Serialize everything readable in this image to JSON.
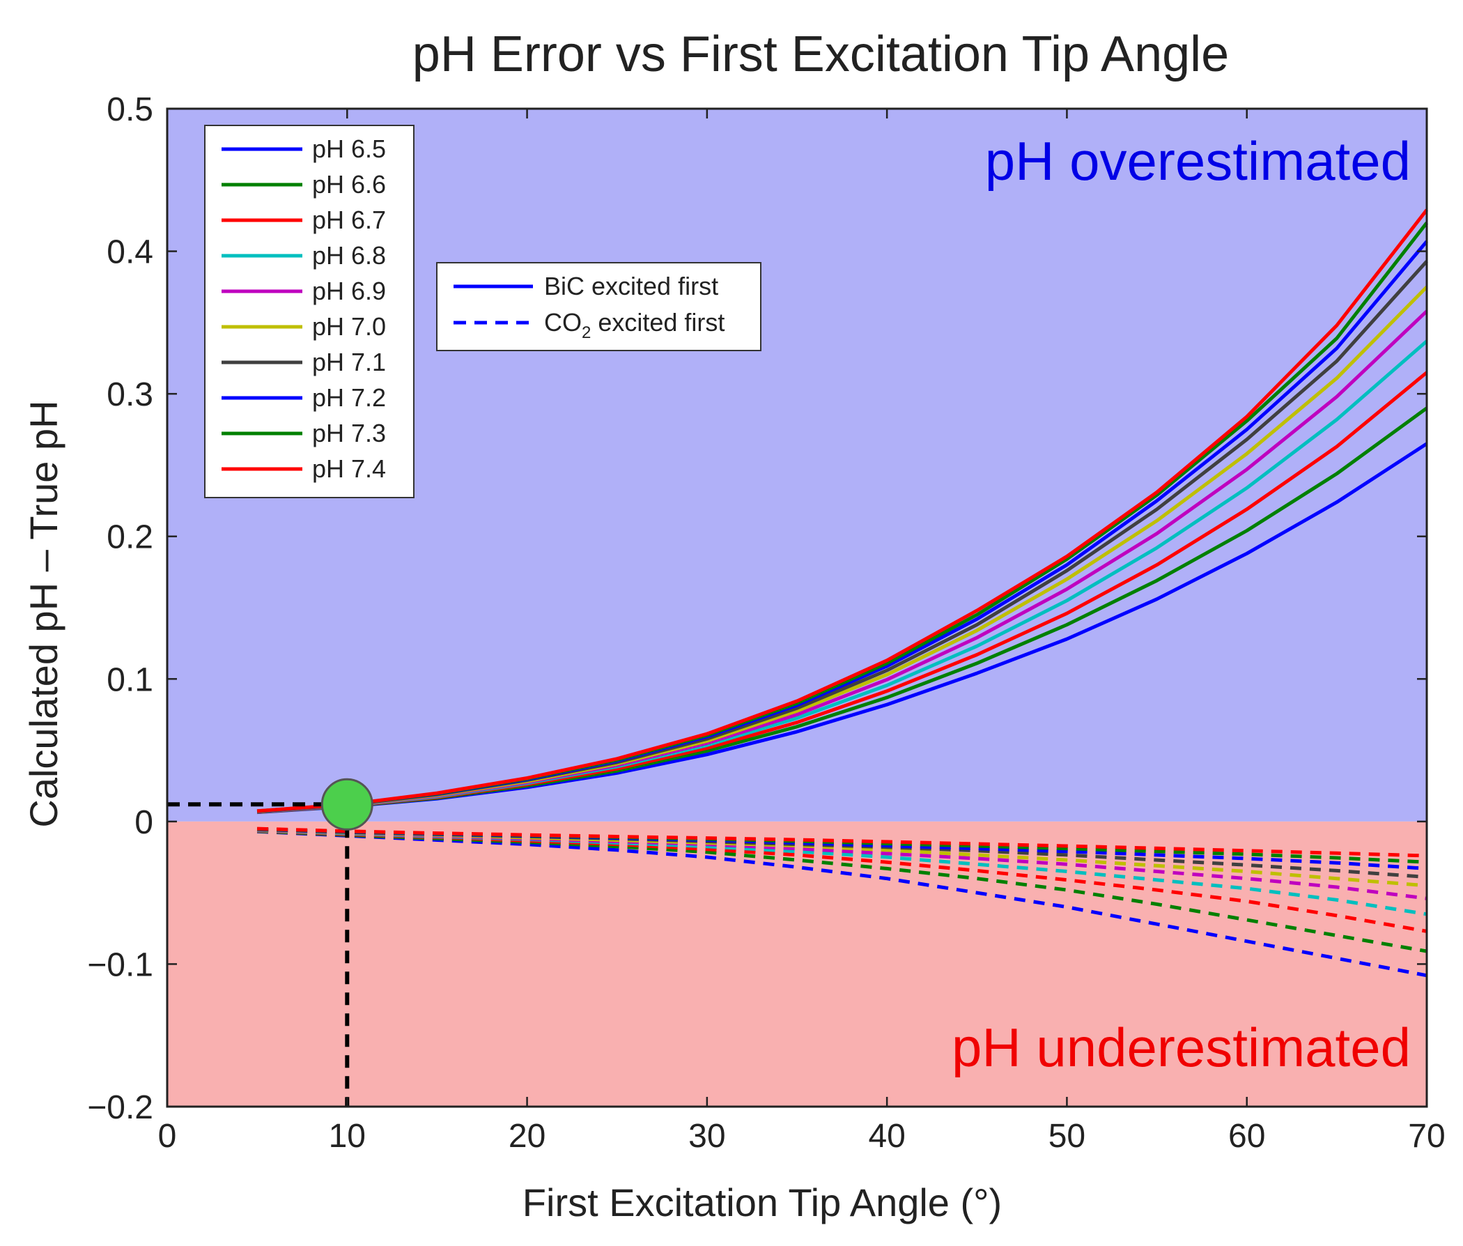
{
  "chart_data": {
    "type": "line",
    "title": "pH Error vs First Excitation Tip Angle",
    "xlabel": "First Excitation Tip Angle (°)",
    "ylabel": "Calculated pH – True pH",
    "xlim": [
      0,
      70
    ],
    "ylim": [
      -0.2,
      0.5
    ],
    "x_ticks": [
      0,
      10,
      20,
      30,
      40,
      50,
      60,
      70
    ],
    "x_tick_labels": [
      "0",
      "10",
      "20",
      "30",
      "40",
      "50",
      "60",
      "70"
    ],
    "y_ticks": [
      -0.2,
      -0.1,
      0,
      0.1,
      0.2,
      0.3,
      0.4,
      0.5
    ],
    "y_tick_labels": [
      "−0.2",
      "−0.1",
      "0",
      "0.1",
      "0.2",
      "0.3",
      "0.4",
      "0.5"
    ],
    "grid": false,
    "x": [
      5,
      10,
      15,
      20,
      25,
      30,
      35,
      40,
      45,
      50,
      55,
      60,
      65,
      70
    ],
    "regions": [
      {
        "label": "pH overestimated",
        "y_range": [
          0,
          0.5
        ],
        "fill": "#b0b0f8",
        "text_color": "#0000e6"
      },
      {
        "label": "pH underestimated",
        "y_range": [
          -0.2,
          0
        ],
        "fill": "#f9b0b0",
        "text_color": "#f00000"
      }
    ],
    "legend_ph": {
      "placement": "top-left",
      "entries": [
        "pH 6.5",
        "pH 6.6",
        "pH 6.7",
        "pH 6.8",
        "pH 6.9",
        "pH 7.0",
        "pH 7.1",
        "pH 7.2",
        "pH 7.3",
        "pH 7.4"
      ]
    },
    "legend_style": {
      "placement": "upper-center",
      "entries": [
        {
          "label": "BiC excited first",
          "dash": "solid"
        },
        {
          "label": "CO",
          "sub": "2",
          "suffix": " excited first",
          "dash": "dashed"
        }
      ]
    },
    "series": [
      {
        "name": "pH 6.5",
        "color": "#0000ff",
        "bic": [
          0.0065,
          0.0105,
          0.016,
          0.024,
          0.034,
          0.047,
          0.063,
          0.082,
          0.104,
          0.128,
          0.156,
          0.188,
          0.224,
          0.265
        ],
        "co2": [
          -0.007,
          -0.01,
          -0.013,
          -0.016,
          -0.02,
          -0.025,
          -0.032,
          -0.04,
          -0.05,
          -0.06,
          -0.072,
          -0.084,
          -0.096,
          -0.108
        ]
      },
      {
        "name": "pH 6.6",
        "color": "#008000",
        "bic": [
          0.0066,
          0.0107,
          0.0165,
          0.025,
          0.0355,
          0.0495,
          0.0665,
          0.087,
          0.111,
          0.138,
          0.169,
          0.204,
          0.244,
          0.29
        ],
        "co2": [
          -0.0068,
          -0.0095,
          -0.012,
          -0.0145,
          -0.0175,
          -0.0215,
          -0.027,
          -0.033,
          -0.04,
          -0.048,
          -0.058,
          -0.069,
          -0.08,
          -0.091
        ]
      },
      {
        "name": "pH 6.7",
        "color": "#ff0000",
        "bic": [
          0.0067,
          0.0109,
          0.017,
          0.026,
          0.037,
          0.0515,
          0.0695,
          0.0915,
          0.117,
          0.146,
          0.18,
          0.219,
          0.263,
          0.315
        ],
        "co2": [
          -0.0065,
          -0.009,
          -0.011,
          -0.0135,
          -0.016,
          -0.0195,
          -0.0235,
          -0.0285,
          -0.0345,
          -0.041,
          -0.048,
          -0.056,
          -0.066,
          -0.077
        ]
      },
      {
        "name": "pH 6.8",
        "color": "#00bfbf",
        "bic": [
          0.0068,
          0.0111,
          0.0175,
          0.0268,
          0.0385,
          0.0535,
          0.0725,
          0.0955,
          0.123,
          0.155,
          0.192,
          0.234,
          0.282,
          0.337
        ],
        "co2": [
          -0.0063,
          -0.0085,
          -0.0105,
          -0.0125,
          -0.015,
          -0.0175,
          -0.021,
          -0.025,
          -0.03,
          -0.035,
          -0.041,
          -0.047,
          -0.055,
          -0.065
        ]
      },
      {
        "name": "pH 6.9",
        "color": "#bf00bf",
        "bic": [
          0.0069,
          0.0113,
          0.018,
          0.0275,
          0.0395,
          0.055,
          0.075,
          0.0995,
          0.129,
          0.163,
          0.202,
          0.247,
          0.298,
          0.358
        ],
        "co2": [
          -0.006,
          -0.008,
          -0.01,
          -0.012,
          -0.014,
          -0.016,
          -0.019,
          -0.0225,
          -0.026,
          -0.03,
          -0.035,
          -0.04,
          -0.046,
          -0.054
        ]
      },
      {
        "name": "pH 7.0",
        "color": "#bfbf00",
        "bic": [
          0.007,
          0.0115,
          0.0185,
          0.0282,
          0.0405,
          0.0565,
          0.0775,
          0.103,
          0.134,
          0.17,
          0.211,
          0.258,
          0.311,
          0.375
        ],
        "co2": [
          -0.0058,
          -0.0078,
          -0.0095,
          -0.0113,
          -0.013,
          -0.015,
          -0.017,
          -0.02,
          -0.0235,
          -0.027,
          -0.031,
          -0.035,
          -0.04,
          -0.045
        ]
      },
      {
        "name": "pH 7.1",
        "color": "#404040",
        "bic": [
          0.0071,
          0.0117,
          0.019,
          0.029,
          0.0415,
          0.058,
          0.0795,
          0.106,
          0.138,
          0.176,
          0.219,
          0.268,
          0.323,
          0.393
        ],
        "co2": [
          -0.0056,
          -0.0075,
          -0.009,
          -0.0105,
          -0.012,
          -0.014,
          -0.016,
          -0.018,
          -0.0205,
          -0.0235,
          -0.027,
          -0.0305,
          -0.0345,
          -0.039
        ]
      },
      {
        "name": "pH 7.2",
        "color": "#0000ff",
        "bic": [
          0.0072,
          0.0118,
          0.0193,
          0.0295,
          0.0425,
          0.0595,
          0.0815,
          0.109,
          0.142,
          0.18,
          0.225,
          0.275,
          0.332,
          0.407
        ],
        "co2": [
          -0.0054,
          -0.0073,
          -0.0088,
          -0.01,
          -0.0115,
          -0.013,
          -0.015,
          -0.017,
          -0.019,
          -0.021,
          -0.0235,
          -0.026,
          -0.029,
          -0.033
        ]
      },
      {
        "name": "pH 7.3",
        "color": "#008000",
        "bic": [
          0.0073,
          0.0119,
          0.0196,
          0.03,
          0.0432,
          0.0605,
          0.083,
          0.111,
          0.145,
          0.184,
          0.229,
          0.281,
          0.339,
          0.42
        ],
        "co2": [
          -0.0052,
          -0.007,
          -0.0085,
          -0.0097,
          -0.011,
          -0.0123,
          -0.0138,
          -0.0155,
          -0.0172,
          -0.019,
          -0.021,
          -0.023,
          -0.0255,
          -0.0285
        ]
      },
      {
        "name": "pH 7.4",
        "color": "#ff0000",
        "bic": [
          0.0074,
          0.012,
          0.0199,
          0.0305,
          0.044,
          0.0615,
          0.0845,
          0.113,
          0.148,
          0.186,
          0.231,
          0.284,
          0.348,
          0.429
        ],
        "co2": [
          -0.005,
          -0.0068,
          -0.0082,
          -0.0094,
          -0.0106,
          -0.0116,
          -0.0128,
          -0.0142,
          -0.0157,
          -0.0172,
          -0.0188,
          -0.0205,
          -0.0222,
          -0.024
        ]
      }
    ],
    "annotation": {
      "type": "marker",
      "x": 10,
      "y": 0.012,
      "fill": "#4ccf4c",
      "guides": "dashed-black"
    }
  }
}
